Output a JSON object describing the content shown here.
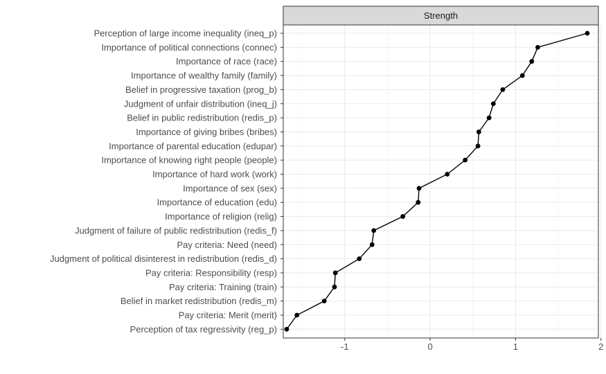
{
  "chart_data": {
    "type": "line",
    "panel_title": "Strength",
    "x_ticks": [
      -1,
      0,
      1,
      2
    ],
    "xlim": [
      -1.72,
      1.97
    ],
    "grid": true,
    "points": [
      {
        "label": "Perception of large income inequality (ineq_p)",
        "value": 1.84
      },
      {
        "label": "Importance of political connections (connec)",
        "value": 1.26
      },
      {
        "label": "Importance of race (race)",
        "value": 1.19
      },
      {
        "label": "Importance of wealthy family (family)",
        "value": 1.08
      },
      {
        "label": "Belief in progressive taxation (prog_b)",
        "value": 0.85
      },
      {
        "label": "Judgment of unfair distribution (ineq_j)",
        "value": 0.74
      },
      {
        "label": "Belief in public redistribution (redis_p)",
        "value": 0.69
      },
      {
        "label": "Importance of giving bribes (bribes)",
        "value": 0.57
      },
      {
        "label": "Importance of parental education (edupar)",
        "value": 0.56
      },
      {
        "label": "Importance of knowing right people (people)",
        "value": 0.41
      },
      {
        "label": "Importance of hard work (work)",
        "value": 0.2
      },
      {
        "label": "Importance of sex (sex)",
        "value": -0.13
      },
      {
        "label": "Importance of education (edu)",
        "value": -0.14
      },
      {
        "label": "Importance of religion (relig)",
        "value": -0.32
      },
      {
        "label": "Judgment of failure of public redistribution (redis_f)",
        "value": -0.66
      },
      {
        "label": "Pay criteria: Need (need)",
        "value": -0.68
      },
      {
        "label": "Judgment of political disinterest in redistribution (redis_d)",
        "value": -0.83
      },
      {
        "label": "Pay criteria: Responsibility (resp)",
        "value": -1.11
      },
      {
        "label": "Pay criteria: Training (train)",
        "value": -1.12
      },
      {
        "label": "Belief in market redistribution (redis_m)",
        "value": -1.24
      },
      {
        "label": "Pay criteria: Merit (merit)",
        "value": -1.56
      },
      {
        "label": "Perception of tax regressivity (reg_p)",
        "value": -1.68
      }
    ]
  }
}
